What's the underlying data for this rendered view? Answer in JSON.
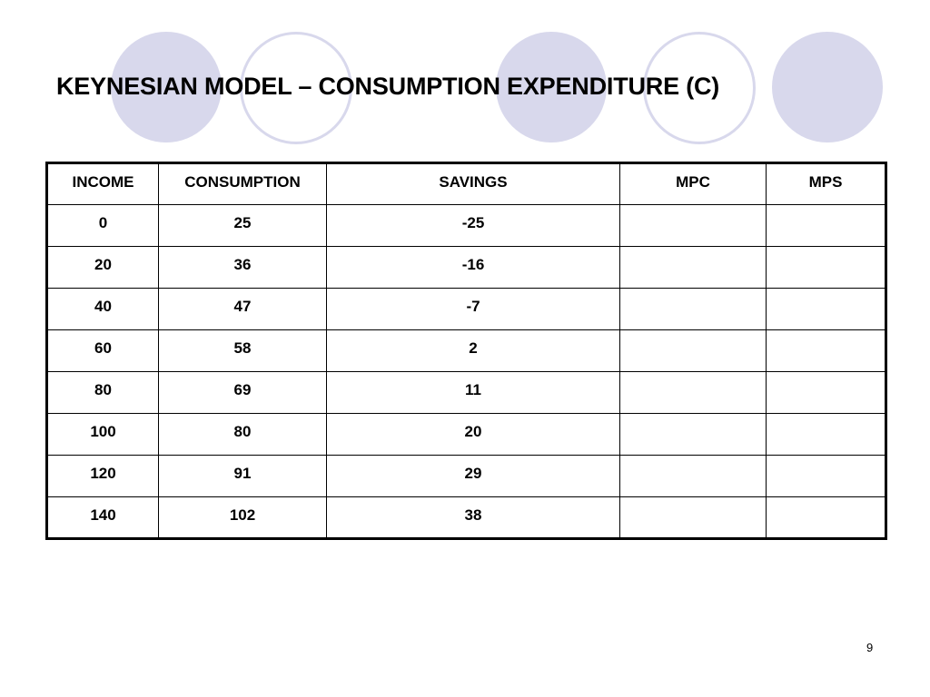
{
  "slide": {
    "title": "KEYNESIAN MODEL – CONSUMPTION EXPENDITURE (C)",
    "page_number": "9"
  },
  "colors": {
    "decor_circle": "#d8d8ec"
  },
  "table": {
    "headers": [
      "INCOME",
      "CONSUMPTION",
      "SAVINGS",
      "MPC",
      "MPS"
    ],
    "rows": [
      [
        "0",
        "25",
        "-25",
        "",
        ""
      ],
      [
        "20",
        "36",
        "-16",
        "",
        ""
      ],
      [
        "40",
        "47",
        "-7",
        "",
        ""
      ],
      [
        "60",
        "58",
        "2",
        "",
        ""
      ],
      [
        "80",
        "69",
        "11",
        "",
        ""
      ],
      [
        "100",
        "80",
        "20",
        "",
        ""
      ],
      [
        "120",
        "91",
        "29",
        "",
        ""
      ],
      [
        "140",
        "102",
        "38",
        "",
        ""
      ]
    ]
  }
}
